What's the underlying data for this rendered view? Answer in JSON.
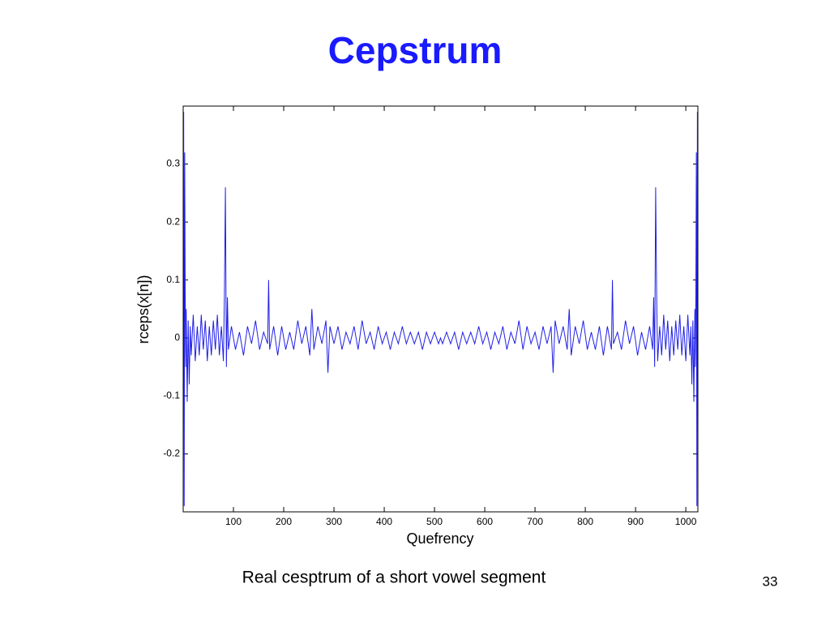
{
  "chart_data": {
    "type": "line",
    "title": "Cepstrum",
    "xlabel": "Quefrency",
    "ylabel": "rceps(x[n])",
    "color": "#1f1fe8",
    "xlim": [
      0,
      1024
    ],
    "ylim": [
      -0.3,
      0.4
    ],
    "xticks": [
      100,
      200,
      300,
      400,
      500,
      600,
      700,
      800,
      900,
      1000
    ],
    "yticks": [
      -0.2,
      -0.1,
      0,
      0.1,
      0.2,
      0.3
    ],
    "x": [
      1,
      2,
      3,
      4,
      5,
      6,
      8,
      10,
      12,
      14,
      16,
      20,
      24,
      28,
      32,
      36,
      40,
      44,
      48,
      52,
      56,
      60,
      64,
      68,
      72,
      76,
      80,
      82,
      84,
      86,
      88,
      90,
      96,
      104,
      112,
      120,
      128,
      136,
      144,
      152,
      160,
      168,
      170,
      172,
      180,
      188,
      196,
      204,
      212,
      220,
      228,
      236,
      244,
      252,
      256,
      260,
      268,
      276,
      284,
      288,
      292,
      300,
      308,
      316,
      324,
      332,
      340,
      348,
      356,
      364,
      372,
      380,
      388,
      396,
      404,
      412,
      420,
      428,
      436,
      444,
      452,
      460,
      468,
      476,
      484,
      492,
      500,
      508,
      512,
      516,
      524,
      532,
      540,
      548,
      556,
      564,
      572,
      580,
      588,
      596,
      604,
      612,
      620,
      628,
      636,
      644,
      652,
      660,
      668,
      676,
      684,
      692,
      700,
      708,
      716,
      724,
      732,
      736,
      740,
      748,
      756,
      764,
      768,
      772,
      780,
      788,
      796,
      804,
      812,
      820,
      828,
      836,
      844,
      852,
      854,
      856,
      864,
      872,
      880,
      888,
      896,
      904,
      912,
      920,
      928,
      934,
      936,
      938,
      940,
      942,
      944,
      948,
      952,
      956,
      960,
      964,
      968,
      972,
      976,
      980,
      984,
      988,
      992,
      996,
      1000,
      1004,
      1008,
      1010,
      1012,
      1014,
      1016,
      1018,
      1019,
      1020,
      1021,
      1022,
      1023
    ],
    "values": [
      0.39,
      -0.29,
      0.32,
      0.08,
      -0.05,
      0.05,
      -0.11,
      0.03,
      -0.08,
      0.02,
      -0.03,
      0.04,
      -0.04,
      0.02,
      -0.03,
      0.04,
      -0.02,
      0.03,
      -0.04,
      0.02,
      -0.03,
      0.03,
      -0.02,
      0.04,
      -0.03,
      0.02,
      -0.04,
      0.07,
      0.26,
      -0.05,
      0.07,
      -0.02,
      0.02,
      -0.02,
      0.01,
      -0.03,
      0.02,
      -0.01,
      0.03,
      -0.02,
      0.01,
      -0.01,
      0.1,
      -0.02,
      0.02,
      -0.03,
      0.02,
      -0.02,
      0.01,
      -0.02,
      0.03,
      -0.01,
      0.02,
      -0.03,
      0.05,
      -0.02,
      0.02,
      -0.01,
      0.03,
      -0.06,
      0.02,
      -0.01,
      0.02,
      -0.02,
      0.01,
      -0.01,
      0.02,
      -0.02,
      0.03,
      -0.01,
      0.01,
      -0.02,
      0.02,
      -0.01,
      0.01,
      -0.02,
      0.01,
      -0.01,
      0.02,
      -0.01,
      0.01,
      -0.01,
      0.01,
      -0.02,
      0.01,
      -0.01,
      0.01,
      -0.01,
      0,
      -0.01,
      0.01,
      -0.01,
      0.01,
      -0.02,
      0.01,
      -0.01,
      0.01,
      -0.01,
      0.02,
      -0.01,
      0.01,
      -0.02,
      0.01,
      -0.01,
      0.02,
      -0.02,
      0.01,
      -0.01,
      0.03,
      -0.02,
      0.02,
      -0.01,
      0.01,
      -0.02,
      0.02,
      -0.01,
      0.02,
      -0.06,
      0.03,
      -0.01,
      0.02,
      -0.02,
      0.05,
      -0.03,
      0.02,
      -0.01,
      0.03,
      -0.02,
      0.01,
      -0.02,
      0.02,
      -0.03,
      0.02,
      -0.02,
      0.1,
      -0.01,
      0.01,
      -0.02,
      0.03,
      -0.01,
      0.02,
      -0.03,
      0.01,
      -0.02,
      0.02,
      -0.02,
      0.07,
      -0.05,
      0.26,
      0.07,
      -0.04,
      0.02,
      -0.03,
      0.04,
      -0.02,
      0.03,
      -0.04,
      0.02,
      -0.03,
      0.03,
      -0.02,
      0.04,
      -0.03,
      0.02,
      -0.04,
      0.04,
      -0.03,
      0.02,
      -0.08,
      0.03,
      -0.11,
      0.05,
      -0.05,
      0.08,
      0.32,
      -0.29,
      0.39
    ]
  },
  "slide": {
    "caption": "Real cesptrum of a short vowel segment",
    "page_number": "33"
  }
}
